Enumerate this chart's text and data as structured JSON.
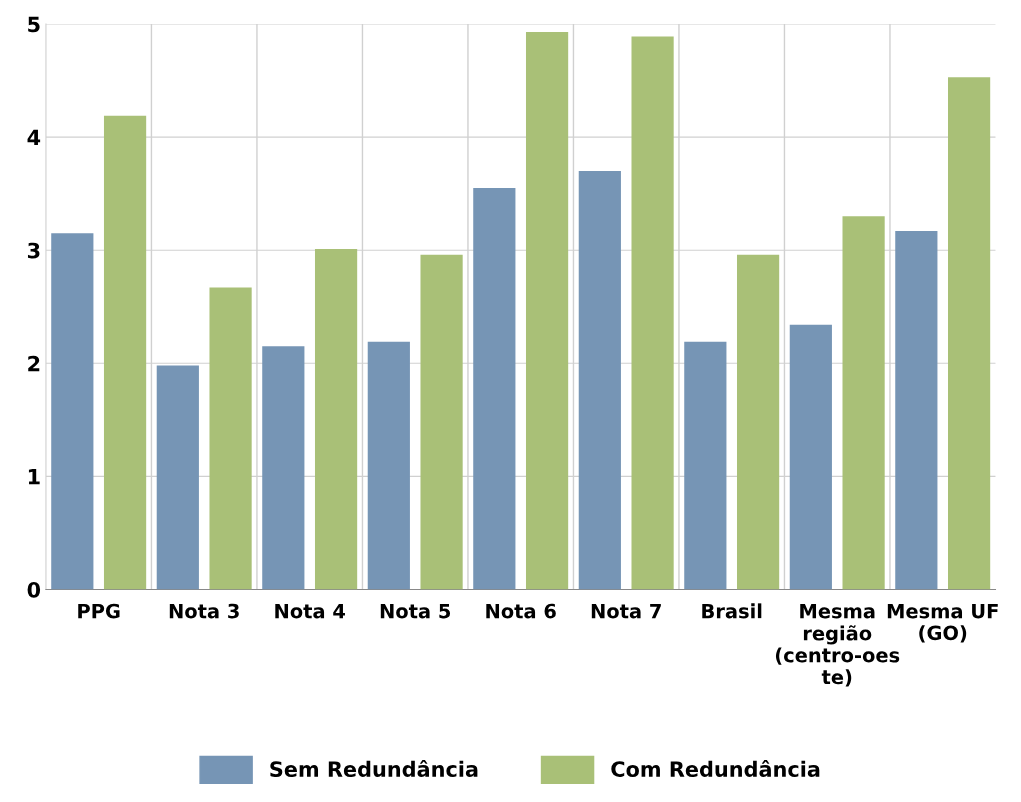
{
  "chart_data": {
    "type": "bar",
    "categories": [
      "PPG",
      "Nota 3",
      "Nota 4",
      "Nota 5",
      "Nota 6",
      "Nota 7",
      "Brasil",
      "Mesma região (centro-oeste)",
      "Mesma UF (GO)"
    ],
    "series": [
      {
        "name": "Sem Redundância",
        "color": "#7695b5",
        "values": [
          3.15,
          1.98,
          2.15,
          2.19,
          3.55,
          3.7,
          2.19,
          2.34,
          3.17
        ]
      },
      {
        "name": "Com Redundância",
        "color": "#a9c077",
        "values": [
          4.19,
          2.67,
          3.01,
          2.96,
          4.93,
          4.89,
          2.96,
          3.3,
          4.53
        ]
      }
    ],
    "ylim": [
      0,
      5
    ],
    "yticks": [
      0,
      1,
      2,
      3,
      4,
      5
    ],
    "grid": true,
    "legend": "bottom"
  }
}
